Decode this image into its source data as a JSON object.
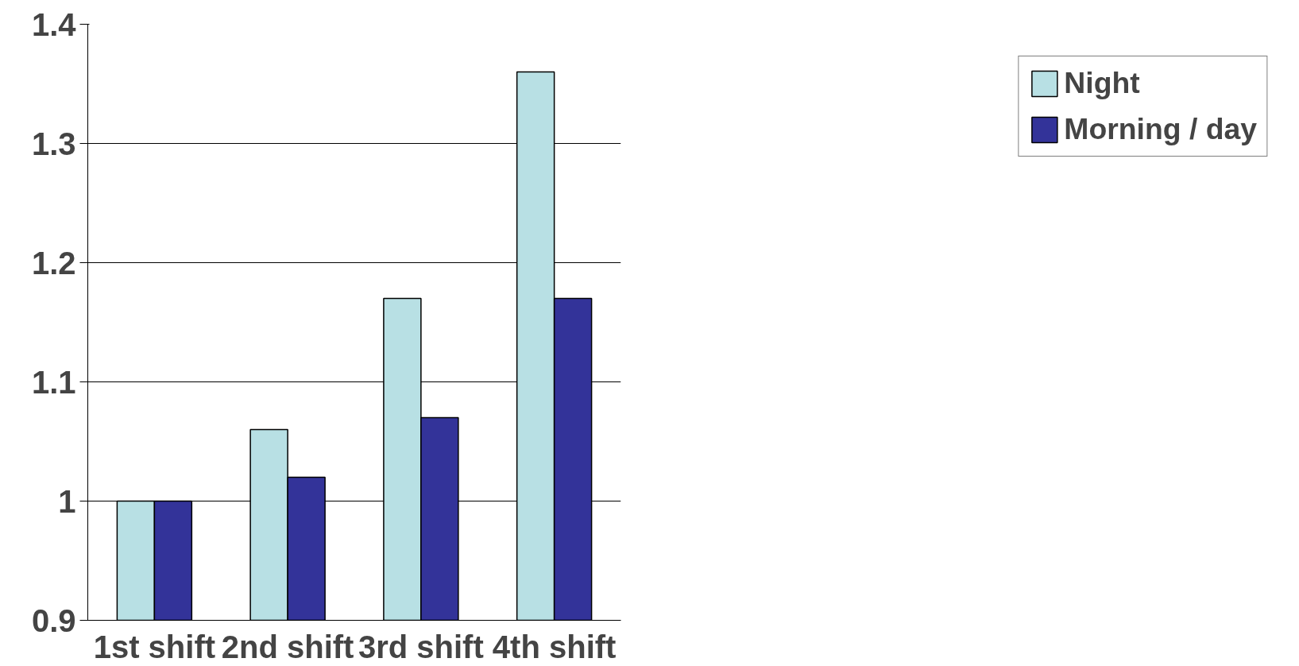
{
  "chart_data": {
    "type": "bar",
    "categories": [
      "1st shift",
      "2nd shift",
      "3rd shift",
      "4th shift"
    ],
    "series": [
      {
        "name": "Night",
        "color": "#b8e0e4",
        "values": [
          1.0,
          1.06,
          1.17,
          1.36
        ]
      },
      {
        "name": "Morning / day",
        "color": "#333399",
        "values": [
          1.0,
          1.02,
          1.07,
          1.17
        ]
      }
    ],
    "ylim": [
      0.9,
      1.4
    ],
    "yticks": [
      0.9,
      1,
      1.1,
      1.2,
      1.3,
      1.4
    ],
    "grid": "y",
    "legend": "right"
  }
}
